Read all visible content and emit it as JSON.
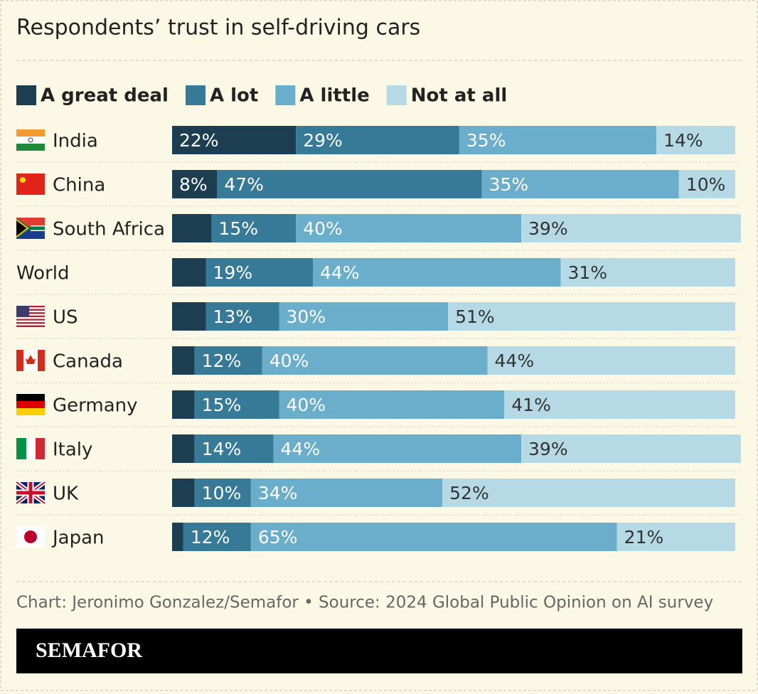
{
  "chart_data": {
    "type": "stacked-bar-horizontal",
    "title": "Respondents’ trust in self-driving cars",
    "categories": [
      "India",
      "China",
      "South Africa",
      "World",
      "US",
      "Canada",
      "Germany",
      "Italy",
      "UK",
      "Japan"
    ],
    "xlim": [
      0,
      100
    ],
    "legend": "top",
    "series": [
      {
        "name": "A great deal",
        "color": "#1d3d51",
        "values": [
          22,
          8,
          7,
          6,
          6,
          4,
          4,
          4,
          4,
          2
        ],
        "value_labels": [
          "22%",
          "8%",
          null,
          null,
          null,
          null,
          null,
          null,
          null,
          null
        ]
      },
      {
        "name": "A lot",
        "color": "#377a97",
        "values": [
          29,
          47,
          15,
          19,
          13,
          12,
          15,
          14,
          10,
          12
        ],
        "value_labels": [
          "29%",
          "47%",
          "15%",
          "19%",
          "13%",
          "12%",
          "15%",
          "14%",
          "10%",
          "12%"
        ]
      },
      {
        "name": "A little",
        "color": "#6aaecb",
        "values": [
          35,
          35,
          40,
          44,
          30,
          40,
          40,
          44,
          34,
          65
        ],
        "value_labels": [
          "35%",
          "35%",
          "40%",
          "44%",
          "30%",
          "40%",
          "40%",
          "44%",
          "34%",
          "65%"
        ]
      },
      {
        "name": "Not at all",
        "color": "#b6d9e6",
        "values": [
          14,
          10,
          39,
          31,
          51,
          44,
          41,
          39,
          52,
          21
        ],
        "value_labels": [
          "14%",
          "10%",
          "39%",
          "31%",
          "51%",
          "44%",
          "41%",
          "39%",
          "52%",
          "21%"
        ]
      }
    ],
    "source": "Chart: Jeronimo Gonzalez/Semafor • Source: 2024 Global Public Opinion on AI survey",
    "brand": "SEMAFOR"
  }
}
